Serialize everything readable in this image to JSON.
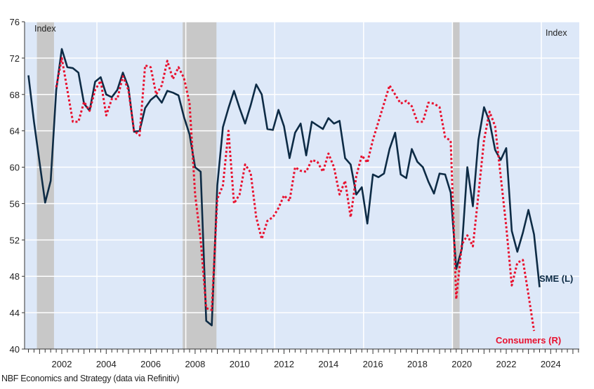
{
  "chart_data": {
    "type": "line",
    "title": "",
    "left_axis_label": "Index",
    "right_axis_label": "Index",
    "ylim": [
      40,
      76
    ],
    "yticks": [
      40,
      44,
      48,
      52,
      56,
      60,
      64,
      68,
      72,
      76
    ],
    "xticks": [
      "2002",
      "2004",
      "2006",
      "2008",
      "2010",
      "2012",
      "2014",
      "2016",
      "2018",
      "2020",
      "2022",
      "2024"
    ],
    "grid": true,
    "recessions": [
      [
        2000.88,
        2001.65
      ],
      [
        2007.44,
        2008.96
      ],
      [
        2019.6,
        2019.9
      ]
    ],
    "series": [
      {
        "name": "SME (L)",
        "color": "#0d2b45",
        "style": "solid",
        "start": 2000.5,
        "step": 0.25,
        "values": [
          70.1,
          65,
          60.5,
          56.1,
          58.5,
          68.5,
          73,
          71,
          70.9,
          70.4,
          67,
          66.2,
          69.4,
          69.9,
          68,
          67.7,
          68.5,
          70.4,
          68.8,
          63.9,
          64,
          66.5,
          67.4,
          67.9,
          67.1,
          68.4,
          68.2,
          67.9,
          65.5,
          63.6,
          60,
          59.5,
          43.1,
          42.6,
          58,
          64.4,
          66.5,
          68.4,
          66.5,
          64.8,
          66.8,
          69.1,
          68,
          64.2,
          64.1,
          66.3,
          64.5,
          61,
          63.8,
          64.8,
          61.3,
          65,
          64.6,
          64.2,
          65.4,
          64.8,
          65.1,
          61,
          60.3,
          57,
          57.8,
          53.8,
          59.2,
          58.9,
          59.3,
          62,
          63.8,
          59.2,
          58.8,
          62,
          60.6,
          60,
          58.4,
          57.1,
          59.3,
          59.2,
          57.2,
          48.8,
          51,
          60,
          55.7,
          63,
          66.6,
          65,
          61.9,
          60.8,
          62.1,
          53,
          50.7,
          52.8,
          55.3,
          52.6,
          46.8
        ]
      },
      {
        "name": "Consumers (R)",
        "color": "#e8102e",
        "style": "dotted",
        "start": 2001.75,
        "step": 0.25,
        "values": [
          68.8,
          72,
          68.5,
          65,
          65,
          67.2,
          66.2,
          68.5,
          69.5,
          65.7,
          67.5,
          67.5,
          70,
          68.5,
          64,
          63.5,
          71.2,
          71,
          68,
          69,
          71.7,
          69.7,
          71,
          69.8,
          67,
          57,
          52,
          44.5,
          44.3,
          56.5,
          58,
          64,
          56,
          57,
          60.3,
          59.4,
          54.5,
          52.1,
          54.1,
          54.5,
          55.5,
          56.9,
          56.3,
          60,
          59.6,
          59.5,
          60.8,
          60.6,
          59.5,
          61.5,
          60,
          57,
          58.5,
          54.5,
          59,
          61.3,
          60.5,
          63,
          65,
          67,
          69,
          68,
          67,
          67.3,
          66.7,
          65,
          65,
          67.1,
          67,
          66.6,
          63.3,
          62.9,
          45.5,
          51.5,
          52.5,
          51.3,
          57,
          63,
          66.1,
          64.5,
          59,
          53.5,
          47,
          49.5,
          49.8,
          46,
          42
        ]
      }
    ]
  },
  "footer": "NBF Economics and Strategy (data via Refinitiv)"
}
